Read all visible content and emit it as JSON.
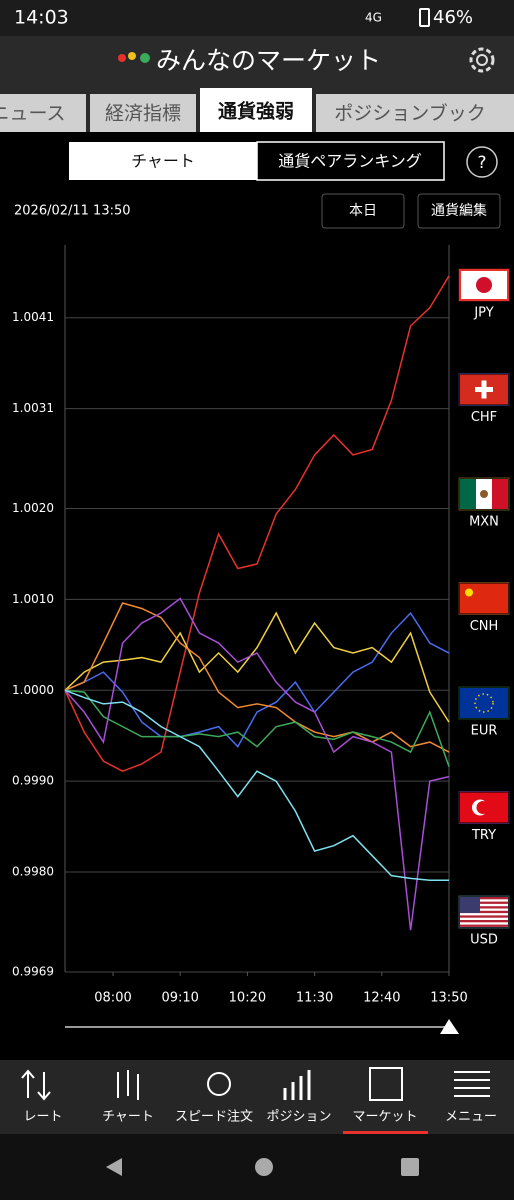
{
  "status_bar": {
    "time": "14:03",
    "network": "4G",
    "battery": "46%"
  },
  "header": {
    "title": "みんなのマーケット"
  },
  "tabs": [
    "ニュース",
    "経済指標",
    "通貨強弱",
    "ポジションブック"
  ],
  "segments": [
    "チャート",
    "通貨ペアランキング"
  ],
  "help": "?",
  "date": "2026/02/11 13:50",
  "buttons": [
    "本日",
    "通貨編集"
  ],
  "chart_data": {
    "type": "line",
    "x": [
      430,
      450,
      470,
      490,
      510,
      530,
      550,
      570,
      590,
      610,
      630,
      650,
      670,
      690,
      710,
      730,
      750,
      770,
      790,
      810,
      830
    ],
    "xlim": [
      430,
      830
    ],
    "xticks": [
      {
        "value": 480,
        "label": "08:00"
      },
      {
        "value": 550,
        "label": "09:10"
      },
      {
        "value": 620,
        "label": "10:20"
      },
      {
        "value": 690,
        "label": "11:30"
      },
      {
        "value": 760,
        "label": "12:40"
      },
      {
        "value": 830,
        "label": "13:50"
      }
    ],
    "ylim": [
      0.9969,
      1.0049
    ],
    "yticks": [
      0.9969,
      {
        "value": 0.998,
        "label": "0.9980"
      },
      {
        "value": 0.999,
        "label": "0.9990"
      },
      {
        "value": 1,
        "label": "1.0000"
      },
      {
        "value": 1.001,
        "label": "1.0010"
      },
      {
        "value": 1.002,
        "label": "1.0020"
      },
      1.0031,
      1.0041
    ],
    "grid": true,
    "series": [
      {
        "name": "JPY",
        "color": "#e8322b",
        "values": [
          1.0,
          0.99954,
          0.99922,
          0.99911,
          0.99919,
          0.99932,
          1.0002,
          1.00107,
          1.00172,
          1.00134,
          1.00139,
          1.00194,
          1.00221,
          1.00259,
          1.00281,
          1.00259,
          1.00265,
          1.00319,
          1.00401,
          1.00421,
          1.00456
        ]
      },
      {
        "name": "CHF",
        "color": "#4a6cf0",
        "values": [
          1.0,
          1.00009,
          1.0002,
          0.99998,
          0.99965,
          0.99949,
          0.99949,
          0.99954,
          0.9996,
          0.99938,
          0.99976,
          0.99987,
          1.00009,
          0.99976,
          0.99998,
          1.0002,
          1.00031,
          1.00063,
          1.00085,
          1.00052,
          1.00041
        ]
      },
      {
        "name": "MXN",
        "color": "#f0d040",
        "values": [
          1.0,
          1.0002,
          1.00031,
          1.00033,
          1.00036,
          1.00031,
          1.00063,
          1.0002,
          1.00041,
          1.0002,
          1.00047,
          1.00085,
          1.00041,
          1.00074,
          1.00047,
          1.00041,
          1.00047,
          1.00031,
          1.00063,
          0.99998,
          0.99965
        ]
      },
      {
        "name": "CNH",
        "color": "#f08a30",
        "values": [
          1.0,
          1.00009,
          1.00052,
          1.00096,
          1.0009,
          1.0008,
          1.00052,
          1.00036,
          0.99998,
          0.99981,
          0.99985,
          0.99981,
          0.99965,
          0.99954,
          0.99949,
          0.99954,
          0.99943,
          0.99954,
          0.99938,
          0.99943,
          0.99932
        ]
      },
      {
        "name": "EUR",
        "color": "#3caa5a",
        "values": [
          1.0,
          0.99998,
          0.99971,
          0.9996,
          0.99949,
          0.99949,
          0.99949,
          0.99952,
          0.99949,
          0.99954,
          0.99938,
          0.9996,
          0.99965,
          0.99949,
          0.99946,
          0.99954,
          0.99949,
          0.99943,
          0.99932,
          0.99976,
          0.99916
        ]
      },
      {
        "name": "TRY",
        "color": "#a64fd6",
        "values": [
          1.0,
          0.99976,
          0.99943,
          1.00052,
          1.00074,
          1.00085,
          1.00101,
          1.00063,
          1.00052,
          1.00031,
          1.00041,
          1.00009,
          0.99987,
          0.99976,
          0.99932,
          0.99949,
          0.99943,
          0.99932,
          0.99736,
          0.999,
          0.99905
        ]
      },
      {
        "name": "USD",
        "color": "#7fe0f0",
        "values": [
          1.0,
          0.99992,
          0.99985,
          0.99987,
          0.99976,
          0.9996,
          0.99949,
          0.99938,
          0.99911,
          0.99883,
          0.99911,
          0.999,
          0.99867,
          0.99823,
          0.99829,
          0.9984,
          0.99818,
          0.99796,
          0.99793,
          0.99791,
          0.99791
        ]
      }
    ]
  },
  "nav": [
    "レート",
    "チャート",
    "スピード注文",
    "ポジション",
    "マーケット",
    "メニュー"
  ]
}
